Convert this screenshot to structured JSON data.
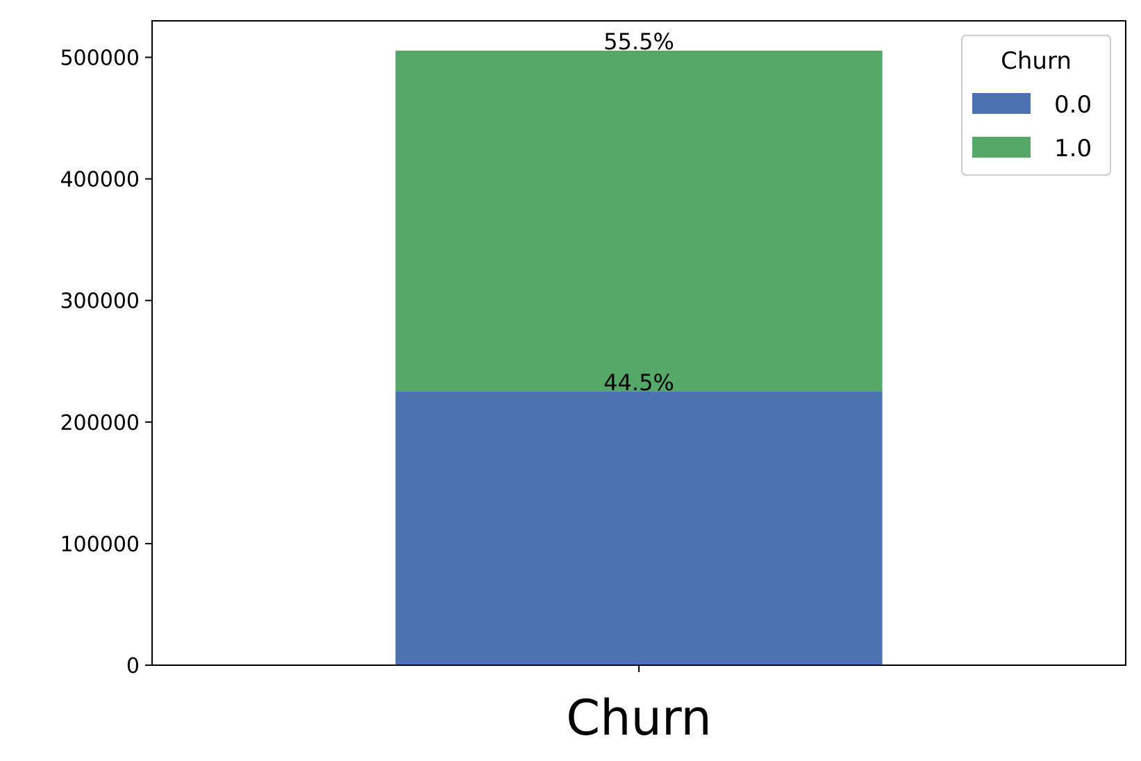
{
  "chart_data": {
    "type": "bar",
    "stacked": true,
    "categories": [
      "Churn"
    ],
    "xlabel": "",
    "ylabel": "",
    "ylim": [
      0,
      530000
    ],
    "yticks": [
      "0",
      "100000",
      "200000",
      "300000",
      "400000",
      "500000"
    ],
    "grid": false,
    "series": [
      {
        "name": "0.0",
        "values": [
          225000
        ],
        "color": "#4c72b0",
        "label": "44.5%"
      },
      {
        "name": "1.0",
        "values": [
          280500
        ],
        "color": "#55a868",
        "label": "55.5%"
      }
    ],
    "legend": {
      "title": "Churn",
      "position": "top-right",
      "entries": [
        "0.0",
        "1.0"
      ]
    }
  }
}
